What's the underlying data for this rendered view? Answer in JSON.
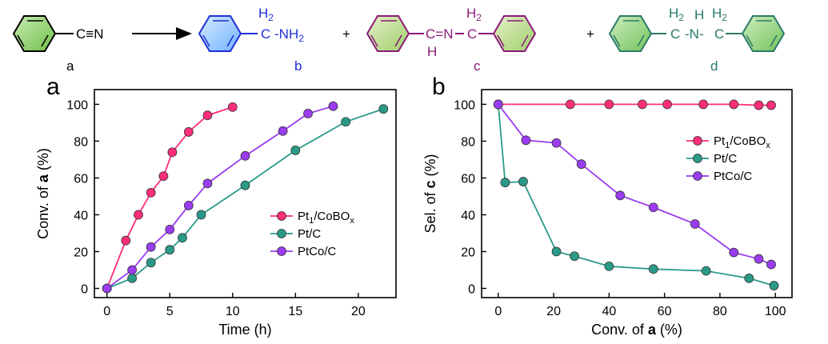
{
  "scheme": {
    "compounds": [
      {
        "id": "a",
        "label": "a",
        "formula_tail": "C≡N",
        "color": "#000000"
      },
      {
        "id": "b",
        "label": "b",
        "group_h2": "H2",
        "group": "C ‐NH2",
        "color": "#1f2fd6"
      },
      {
        "id": "c",
        "label": "c",
        "color": "#8b1a7a"
      },
      {
        "id": "d",
        "label": "d",
        "color": "#2a7a6a"
      }
    ],
    "plus": "+"
  },
  "colors": {
    "pt1": "#ff2d7a",
    "ptc": "#2a9a88",
    "ptco": "#9a3cf0"
  },
  "chart_data": [
    {
      "type": "line",
      "panel": "a",
      "xlabel": "Time (h)",
      "ylabel_prefix": "Conv. of ",
      "ylabel_bold": "a",
      "ylabel_suffix": " (%)",
      "xlim": [
        -1,
        23
      ],
      "ylim": [
        -5,
        108
      ],
      "xticks": [
        0,
        5,
        10,
        15,
        20
      ],
      "yticks": [
        0,
        20,
        40,
        60,
        80,
        100
      ],
      "legend": "center-right",
      "series": [
        {
          "name": "Pt1/CoBOx",
          "color_key": "pt1",
          "x": [
            0,
            1.5,
            2.5,
            3.5,
            4.5,
            5.2,
            6.5,
            8,
            10
          ],
          "y": [
            0,
            26,
            40,
            52,
            61,
            74,
            85,
            94,
            98.5
          ]
        },
        {
          "name": "Pt/C",
          "color_key": "ptc",
          "x": [
            0,
            2,
            3.5,
            5,
            6,
            7.5,
            11,
            15,
            19,
            22
          ],
          "y": [
            0,
            5.5,
            14,
            21,
            27.5,
            40,
            56,
            75,
            90.5,
            97.5
          ]
        },
        {
          "name": "PtCo/C",
          "color_key": "ptco",
          "x": [
            0,
            2,
            3.5,
            5,
            6.5,
            8,
            11,
            14,
            16,
            18
          ],
          "y": [
            0,
            10,
            22.5,
            32,
            45,
            57,
            72,
            85.5,
            95,
            99
          ]
        }
      ]
    },
    {
      "type": "line",
      "panel": "b",
      "xlabel_prefix": "Conv. of ",
      "xlabel_bold": "a",
      "xlabel_suffix": " (%)",
      "ylabel_prefix": "Sel. of ",
      "ylabel_bold": "c",
      "ylabel_suffix": " (%)",
      "xlim": [
        -6,
        106
      ],
      "ylim": [
        -5,
        108
      ],
      "xticks": [
        0,
        20,
        40,
        60,
        80,
        100
      ],
      "yticks": [
        0,
        20,
        40,
        60,
        80,
        100
      ],
      "legend": "top-right",
      "series": [
        {
          "name": "Pt1/CoBOx",
          "color_key": "pt1",
          "x": [
            0,
            26,
            40,
            52,
            61,
            74,
            85,
            94,
            98.5
          ],
          "y": [
            100,
            100,
            100,
            100,
            100,
            100,
            100,
            99.5,
            99.5
          ]
        },
        {
          "name": "Pt/C",
          "color_key": "ptc",
          "x": [
            0,
            2.5,
            9,
            21,
            27.5,
            40,
            56,
            75,
            90.5,
            99.5
          ],
          "y": [
            100,
            57.5,
            58,
            20,
            17.5,
            12,
            10.5,
            9.5,
            5.5,
            1.5
          ]
        },
        {
          "name": "PtCo/C",
          "color_key": "ptco",
          "x": [
            0,
            10,
            21,
            30,
            44,
            56,
            71,
            85,
            94,
            98.5
          ],
          "y": [
            100,
            80.5,
            79,
            67.5,
            50.5,
            44,
            35,
            19.5,
            16,
            13
          ]
        }
      ]
    }
  ]
}
